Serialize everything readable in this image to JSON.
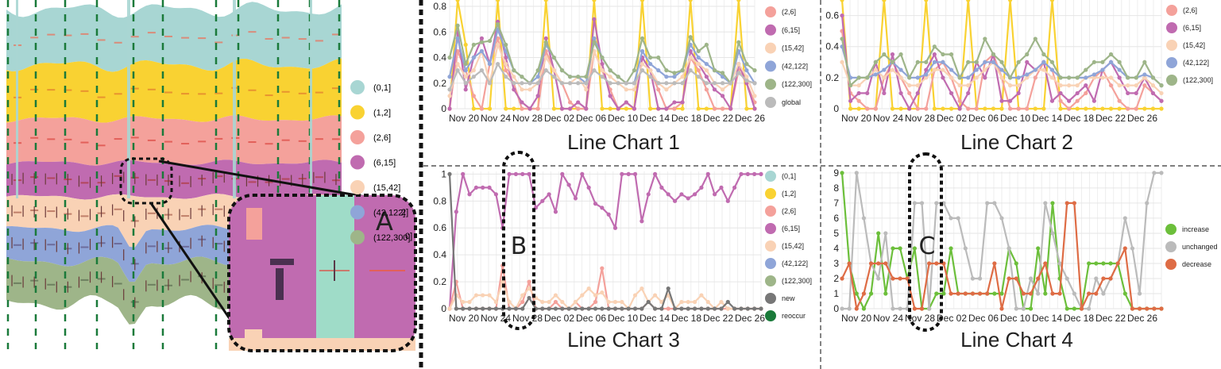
{
  "stream": {
    "legend": [
      "(0,1]",
      "(1,2]",
      "(2,6]",
      "(6,15]",
      "(15,42]",
      "(42,122]",
      "(122,300]"
    ],
    "colors": [
      "#a8d6d3",
      "#f9d232",
      "#f4a19b",
      "#c06bb0",
      "#f9d2b5",
      "#8fa5d8",
      "#9eb589"
    ],
    "zoom_label": "A",
    "clipped_legend_fragments": [
      "2]",
      "0]"
    ]
  },
  "x_ticks": [
    "Nov 20",
    "Nov 24",
    "Nov 28",
    "Dec 02",
    "Dec 06",
    "Dec 10",
    "Dec 14",
    "Dec 18",
    "Dec 22",
    "Dec 26"
  ],
  "captions": {
    "c1": "Line Chart 1",
    "c2": "Line Chart 2",
    "c3": "Line Chart 3",
    "c4": "Line Chart 4"
  },
  "markers": {
    "b": "B",
    "c": "C"
  },
  "chart_data": [
    {
      "type": "line",
      "title": "Line Chart 1",
      "yticks": [
        "0",
        "0.2",
        "0.4",
        "0.6",
        "0.8"
      ],
      "ylim": [
        0,
        0.85
      ],
      "legend_visible": [
        "(2,6]",
        "(6,15]",
        "(15,42]",
        "(42,122]",
        "(122,300]",
        "global"
      ],
      "series": [
        {
          "name": "(1,2]",
          "color": "#f9d232",
          "values": [
            0,
            1,
            0.5,
            0,
            0,
            0,
            1,
            0,
            0,
            0,
            0,
            0,
            1,
            0,
            0,
            0,
            0,
            0,
            1,
            0,
            0,
            0,
            0,
            0,
            1,
            0,
            0,
            0,
            0,
            0,
            1,
            0,
            0,
            0,
            0,
            0,
            1,
            0,
            0
          ]
        },
        {
          "name": "(2,6]",
          "color": "#f4a19b",
          "values": [
            0,
            0.45,
            0.3,
            0.1,
            0,
            0.35,
            0.55,
            0.3,
            0.2,
            0,
            0,
            0,
            0.45,
            0.3,
            0.2,
            0.05,
            0,
            0,
            0.45,
            0.3,
            0.15,
            0,
            0.05,
            0,
            0.4,
            0.3,
            0.15,
            0,
            0,
            0.05,
            0.4,
            0.3,
            0.15,
            0,
            0,
            0,
            0.3,
            0.2,
            0.05
          ]
        },
        {
          "name": "(6,15]",
          "color": "#c06bb0",
          "values": [
            0,
            0.6,
            0.15,
            0.4,
            0.55,
            0.35,
            0.68,
            0.4,
            0.15,
            0.05,
            0,
            0.1,
            0.55,
            0.3,
            0,
            0,
            0.05,
            0,
            0.7,
            0.35,
            0.1,
            0,
            0.05,
            0,
            0.4,
            0.3,
            0,
            0,
            0.05,
            0.05,
            0.45,
            0.35,
            0.25,
            0.15,
            0.1,
            0,
            0.35,
            0.2,
            0
          ]
        },
        {
          "name": "(15,42]",
          "color": "#f9d2b5",
          "values": [
            0.1,
            0.35,
            0.25,
            0.3,
            0.45,
            0.2,
            0.5,
            0.35,
            0.25,
            0.15,
            0.15,
            0.2,
            0.4,
            0.3,
            0.2,
            0.2,
            0.25,
            0.15,
            0.45,
            0.3,
            0.25,
            0.2,
            0.15,
            0.15,
            0.35,
            0.3,
            0.2,
            0.15,
            0.2,
            0.25,
            0.4,
            0.35,
            0.3,
            0.2,
            0.15,
            0.2,
            0.35,
            0.25,
            0.1
          ]
        },
        {
          "name": "(42,122]",
          "color": "#8fa5d8",
          "values": [
            0.25,
            0.55,
            0.3,
            0.4,
            0.45,
            0.35,
            0.62,
            0.45,
            0.3,
            0.25,
            0.2,
            0.25,
            0.5,
            0.4,
            0.3,
            0.25,
            0.25,
            0.2,
            0.55,
            0.4,
            0.3,
            0.25,
            0.2,
            0.2,
            0.45,
            0.35,
            0.3,
            0.25,
            0.25,
            0.3,
            0.5,
            0.4,
            0.35,
            0.3,
            0.25,
            0.2,
            0.45,
            0.3,
            0.2
          ]
        },
        {
          "name": "(122,300]",
          "color": "#9eb589",
          "values": [
            0.4,
            0.65,
            0.35,
            0.5,
            0.52,
            0.53,
            0.66,
            0.5,
            0.3,
            0.25,
            0.2,
            0.3,
            0.52,
            0.4,
            0.3,
            0.25,
            0.25,
            0.25,
            0.52,
            0.4,
            0.3,
            0.25,
            0.2,
            0.3,
            0.55,
            0.4,
            0.4,
            0.3,
            0.28,
            0.3,
            0.56,
            0.45,
            0.5,
            0.3,
            0.28,
            0.2,
            0.52,
            0.35,
            0.3
          ]
        },
        {
          "name": "global",
          "color": "#bbbbbb",
          "values": [
            0.15,
            0.3,
            0.2,
            0.25,
            0.3,
            0.2,
            0.35,
            0.25,
            0.2,
            0.2,
            0.2,
            0.2,
            0.3,
            0.25,
            0.2,
            0.2,
            0.2,
            0.2,
            0.3,
            0.25,
            0.2,
            0.2,
            0.2,
            0.2,
            0.3,
            0.25,
            0.2,
            0.2,
            0.2,
            0.2,
            0.3,
            0.25,
            0.2,
            0.2,
            0.2,
            0.2,
            0.28,
            0.22,
            0.2
          ]
        }
      ]
    },
    {
      "type": "line",
      "title": "Line Chart 2",
      "yticks": [
        "0",
        "0.2",
        "0.4",
        "0.6"
      ],
      "ylim": [
        0,
        0.7
      ],
      "legend_visible": [
        "(2,6]",
        "(6,15]",
        "(15,42]",
        "(42,122]",
        "(122,300]"
      ],
      "series": [
        {
          "name": "(1,2]",
          "color": "#f9d232",
          "values": [
            0.7,
            0,
            0,
            0,
            0,
            0.7,
            0,
            0,
            0,
            0,
            0.7,
            0,
            0,
            0,
            0,
            0.7,
            0,
            0,
            0,
            0,
            0.7,
            0,
            0,
            0,
            0,
            0.7,
            0,
            0,
            0,
            0,
            0,
            0,
            0,
            0,
            0,
            0,
            0,
            0,
            0
          ]
        },
        {
          "name": "(2,6]",
          "color": "#f4a19b",
          "values": [
            0.5,
            0.1,
            0.05,
            0,
            0,
            0.2,
            0.3,
            0.2,
            0.1,
            0,
            0,
            0.25,
            0.3,
            0.2,
            0.05,
            0,
            0,
            0.3,
            0.35,
            0.2,
            0,
            0,
            0,
            0.2,
            0.3,
            0.25,
            0.05,
            0,
            0.05,
            0.1,
            0.2,
            0.25,
            0.15,
            0.05,
            0,
            0,
            0.15,
            0.1,
            0.05
          ]
        },
        {
          "name": "(6,15]",
          "color": "#c06bb0",
          "values": [
            0.6,
            0.05,
            0.1,
            0.1,
            0.3,
            0.1,
            0.35,
            0.1,
            0,
            0.1,
            0.25,
            0.35,
            0.2,
            0.1,
            0,
            0.1,
            0.3,
            0.2,
            0.35,
            0.05,
            0.05,
            0.1,
            0.3,
            0.25,
            0.3,
            0.05,
            0.1,
            0.05,
            0.1,
            0.15,
            0.05,
            0.25,
            0.3,
            0.2,
            0.1,
            0.1,
            0.2,
            0.1,
            0.05
          ]
        },
        {
          "name": "(15,42]",
          "color": "#f9d2b5",
          "values": [
            0.3,
            0.15,
            0.15,
            0.2,
            0.25,
            0.2,
            0.25,
            0.2,
            0.15,
            0.15,
            0.2,
            0.25,
            0.25,
            0.2,
            0.15,
            0.15,
            0.2,
            0.25,
            0.3,
            0.2,
            0.15,
            0.15,
            0.2,
            0.25,
            0.25,
            0.2,
            0.15,
            0.15,
            0.15,
            0.2,
            0.2,
            0.2,
            0.2,
            0.15,
            0.15,
            0.15,
            0.2,
            0.15,
            0.1
          ]
        },
        {
          "name": "(42,122]",
          "color": "#8fa5d8",
          "values": [
            0.4,
            0.2,
            0.2,
            0.2,
            0.22,
            0.25,
            0.3,
            0.25,
            0.2,
            0.2,
            0.22,
            0.3,
            0.3,
            0.25,
            0.2,
            0.2,
            0.25,
            0.3,
            0.3,
            0.25,
            0.2,
            0.2,
            0.22,
            0.25,
            0.3,
            0.25,
            0.2,
            0.2,
            0.2,
            0.2,
            0.22,
            0.25,
            0.3,
            0.25,
            0.2,
            0.2,
            0.22,
            0.2,
            0.15
          ]
        },
        {
          "name": "(122,300]",
          "color": "#9eb589",
          "values": [
            0.45,
            0.15,
            0.2,
            0.2,
            0.3,
            0.35,
            0.3,
            0.35,
            0.2,
            0.3,
            0.3,
            0.4,
            0.35,
            0.35,
            0.2,
            0.3,
            0.3,
            0.45,
            0.35,
            0.3,
            0.2,
            0.3,
            0.35,
            0.45,
            0.35,
            0.3,
            0.2,
            0.2,
            0.2,
            0.25,
            0.3,
            0.3,
            0.35,
            0.3,
            0.2,
            0.2,
            0.3,
            0.2,
            0.15
          ]
        }
      ]
    },
    {
      "type": "line",
      "title": "Line Chart 3",
      "yticks": [
        "0",
        "0.2",
        "0.4",
        "0.6",
        "0.8",
        "1"
      ],
      "ylim": [
        0,
        1.02
      ],
      "legend_visible": [
        "(0,1]",
        "(1,2]",
        "(2,6]",
        "(6,15]",
        "(15,42]",
        "(42,122]",
        "(122,300]",
        "new",
        "reoccur"
      ],
      "series": [
        {
          "name": "(6,15]",
          "color": "#c06bb0",
          "values": [
            0,
            0.72,
            1,
            0.85,
            0.9,
            0.9,
            0.9,
            0.85,
            0.6,
            1,
            1,
            1,
            1,
            0.75,
            0.8,
            0.85,
            0.72,
            1,
            0.92,
            0.82,
            1,
            0.9,
            0.78,
            0.75,
            0.7,
            0.6,
            1,
            1,
            1,
            0.65,
            0.85,
            1,
            0.9,
            0.85,
            0.8,
            0.85,
            0.82,
            0.85,
            0.9,
            1,
            0.85,
            0.9,
            0.8,
            0.9,
            1,
            1,
            1,
            1
          ]
        },
        {
          "name": "(2,6]",
          "color": "#f4a19b",
          "values": [
            0,
            0.2,
            0,
            0,
            0,
            0,
            0,
            0,
            0.32,
            0,
            0,
            0.05,
            0.2,
            0,
            0,
            0,
            0.05,
            0,
            0,
            0.05,
            0,
            0,
            0.05,
            0.3,
            0,
            0,
            0,
            0,
            0,
            0,
            0.05,
            0,
            0,
            0,
            0,
            0,
            0,
            0,
            0,
            0,
            0,
            0,
            0,
            0,
            0,
            0,
            0,
            0
          ]
        },
        {
          "name": "(15,42]",
          "color": "#f9d2b5",
          "values": [
            0,
            0.1,
            0.05,
            0.05,
            0.1,
            0.1,
            0.1,
            0.05,
            0.2,
            0.05,
            0,
            0.1,
            0.15,
            0.08,
            0.05,
            0.05,
            0.1,
            0.05,
            0,
            0.05,
            0.1,
            0.15,
            0.1,
            0.12,
            0.05,
            0.05,
            0.05,
            0,
            0.1,
            0.15,
            0.05,
            0.1,
            0.05,
            0.1,
            0,
            0.05,
            0.05,
            0.05,
            0.1,
            0.05,
            0,
            0.05,
            0,
            0,
            0,
            0,
            0,
            0
          ]
        },
        {
          "name": "new",
          "color": "#777777",
          "values": [
            1,
            0,
            0,
            0,
            0,
            0,
            0,
            0,
            0,
            0,
            0,
            0,
            0.08,
            0,
            0,
            0,
            0,
            0,
            0,
            0,
            0,
            0,
            0,
            0,
            0,
            0,
            0,
            0,
            0,
            0,
            0.05,
            0,
            0,
            0.15,
            0,
            0,
            0,
            0,
            0,
            0,
            0,
            0,
            0.05,
            0,
            0,
            0,
            0,
            0
          ]
        }
      ]
    },
    {
      "type": "line",
      "title": "Line Chart 4",
      "yticks": [
        "0",
        "1",
        "2",
        "3",
        "4",
        "5",
        "6",
        "7",
        "8",
        "9"
      ],
      "ylim": [
        0,
        9.1
      ],
      "legend_visible": [
        "increase",
        "unchanged",
        "decrease"
      ],
      "series": [
        {
          "name": "increase",
          "color": "#6cbf3b",
          "values": [
            9,
            3,
            1,
            0,
            1,
            5,
            1,
            4,
            4,
            2,
            4,
            0,
            0,
            1,
            1,
            4,
            1,
            1,
            1,
            1,
            1,
            1,
            1,
            4,
            3,
            0,
            0,
            4,
            1,
            7,
            2,
            0,
            0,
            0,
            3,
            3,
            3,
            3,
            3,
            1,
            0,
            0,
            0,
            0,
            0
          ]
        },
        {
          "name": "unchanged",
          "color": "#bbbbbb",
          "values": [
            0,
            0,
            9,
            6,
            3,
            2,
            5,
            0,
            0,
            0,
            7,
            7,
            0,
            7,
            7,
            6,
            6,
            4,
            2,
            2,
            7,
            7,
            6,
            4,
            0,
            0,
            2,
            1,
            7,
            5,
            3,
            2,
            1,
            0,
            0,
            2,
            1,
            2,
            3,
            6,
            4,
            1,
            7,
            9,
            9
          ]
        },
        {
          "name": "decrease",
          "color": "#de6c45",
          "values": [
            2,
            3,
            0,
            1,
            3,
            3,
            3,
            2,
            2,
            2,
            0,
            0,
            3,
            3,
            3,
            1,
            1,
            1,
            1,
            1,
            1,
            3,
            0,
            2,
            2,
            1,
            1,
            2,
            3,
            1,
            1,
            7,
            7,
            0,
            1,
            1,
            2,
            2,
            3,
            4,
            0,
            0,
            0,
            0,
            0
          ]
        }
      ]
    }
  ]
}
